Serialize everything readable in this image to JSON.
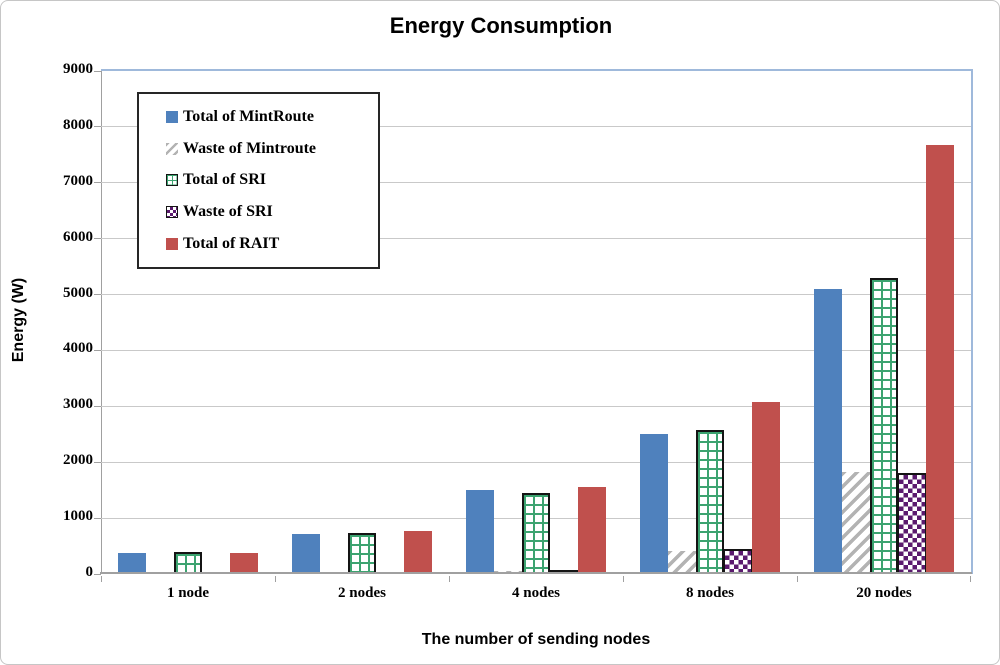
{
  "chart_data": {
    "type": "bar",
    "title": "Energy Consumption",
    "xlabel": "The number of sending nodes",
    "ylabel": "Energy (W)",
    "categories": [
      "1 node",
      "2 nodes",
      "4 nodes",
      "8 nodes",
      "20 nodes"
    ],
    "series": [
      {
        "name": "Total of MintRoute",
        "style": "solid-blue",
        "color": "#4F81BD",
        "values": [
          380,
          720,
          1500,
          2500,
          5100
        ]
      },
      {
        "name": "Waste of Mintroute",
        "style": "diagonal-hatch-gray",
        "color": "#B3B3B3",
        "values": [
          10,
          20,
          60,
          420,
          1820
        ]
      },
      {
        "name": "Total of SRI",
        "style": "grid-green",
        "color": "#3CA370",
        "values": [
          400,
          740,
          1450,
          2570,
          5300
        ]
      },
      {
        "name": "Waste of SRI",
        "style": "checker-purple",
        "color": "#5B1A6E",
        "values": [
          10,
          20,
          80,
          450,
          1800
        ]
      },
      {
        "name": "Total of RAIT",
        "style": "solid-red",
        "color": "#C0504D",
        "values": [
          380,
          770,
          1550,
          3080,
          7680
        ]
      }
    ],
    "ylim": [
      0,
      9000
    ],
    "ytick_step": 1000,
    "grid": "horizontal",
    "legend_position": "top-left-inside",
    "colors": {
      "gridline": "#C9C9C9",
      "axis": "#A0A0A0",
      "plot_border": "#9FB9DB"
    }
  }
}
